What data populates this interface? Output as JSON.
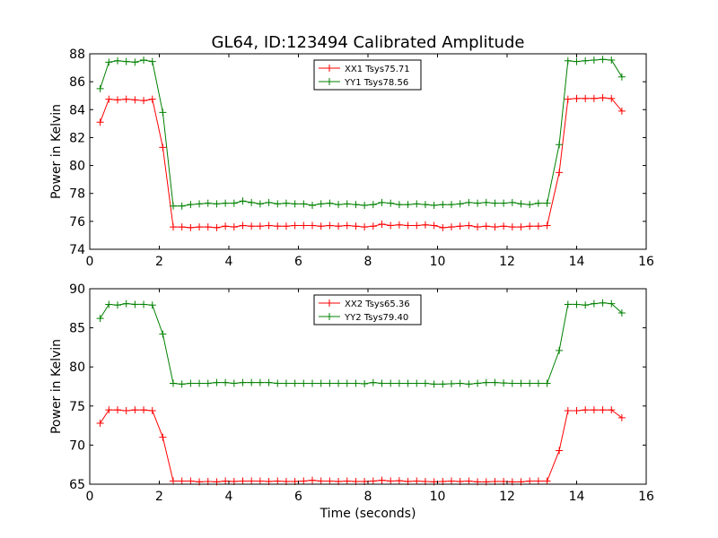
{
  "title": "GL64, ID:123494 Calibrated Amplitude",
  "chart_data": [
    {
      "type": "line",
      "ylabel": "Power in Kelvin",
      "xlabel": "",
      "xlim": [
        0,
        16
      ],
      "ylim": [
        74,
        88
      ],
      "xticks": [
        0,
        2,
        4,
        6,
        8,
        10,
        12,
        14,
        16
      ],
      "yticks": [
        74,
        76,
        78,
        80,
        82,
        84,
        86,
        88
      ],
      "grid": false,
      "legend": "upper-center",
      "x": [
        0.3,
        0.55,
        0.8,
        1.05,
        1.3,
        1.55,
        1.8,
        2.1,
        2.4,
        2.65,
        2.9,
        3.15,
        3.4,
        3.65,
        3.9,
        4.15,
        4.4,
        4.65,
        4.9,
        5.15,
        5.4,
        5.65,
        5.9,
        6.15,
        6.4,
        6.65,
        6.9,
        7.15,
        7.4,
        7.65,
        7.9,
        8.15,
        8.4,
        8.65,
        8.9,
        9.15,
        9.4,
        9.65,
        9.9,
        10.15,
        10.4,
        10.65,
        10.9,
        11.15,
        11.4,
        11.65,
        11.9,
        12.15,
        12.4,
        12.65,
        12.9,
        13.15,
        13.5,
        13.75,
        14.0,
        14.25,
        14.5,
        14.75,
        15.0,
        15.3
      ],
      "series": [
        {
          "name": "XX1 Tsys75.71",
          "color": "#ff0000",
          "values": [
            83.1,
            84.75,
            84.7,
            84.75,
            84.7,
            84.65,
            84.75,
            81.3,
            75.6,
            75.6,
            75.55,
            75.6,
            75.6,
            75.55,
            75.65,
            75.6,
            75.7,
            75.65,
            75.65,
            75.7,
            75.65,
            75.65,
            75.7,
            75.7,
            75.7,
            75.65,
            75.7,
            75.65,
            75.7,
            75.65,
            75.6,
            75.65,
            75.8,
            75.7,
            75.75,
            75.7,
            75.7,
            75.75,
            75.7,
            75.55,
            75.6,
            75.65,
            75.7,
            75.6,
            75.65,
            75.6,
            75.65,
            75.6,
            75.6,
            75.65,
            75.65,
            75.7,
            79.5,
            84.75,
            84.8,
            84.8,
            84.8,
            84.85,
            84.8,
            83.9
          ]
        },
        {
          "name": "YY1 Tsys78.56",
          "color": "#008000",
          "values": [
            85.5,
            87.4,
            87.5,
            87.45,
            87.4,
            87.55,
            87.45,
            83.8,
            77.1,
            77.1,
            77.2,
            77.25,
            77.3,
            77.25,
            77.3,
            77.3,
            77.45,
            77.35,
            77.25,
            77.35,
            77.25,
            77.3,
            77.25,
            77.25,
            77.15,
            77.25,
            77.3,
            77.2,
            77.25,
            77.2,
            77.15,
            77.2,
            77.35,
            77.3,
            77.2,
            77.2,
            77.25,
            77.2,
            77.15,
            77.2,
            77.2,
            77.25,
            77.35,
            77.3,
            77.35,
            77.3,
            77.3,
            77.35,
            77.25,
            77.2,
            77.3,
            77.3,
            81.5,
            87.5,
            87.45,
            87.5,
            87.55,
            87.6,
            87.55,
            86.35
          ]
        }
      ]
    },
    {
      "type": "line",
      "ylabel": "Power in Kelvin",
      "xlabel": "Time (seconds)",
      "xlim": [
        0,
        16
      ],
      "ylim": [
        65,
        90
      ],
      "xticks": [
        0,
        2,
        4,
        6,
        8,
        10,
        12,
        14,
        16
      ],
      "yticks": [
        65,
        70,
        75,
        80,
        85,
        90
      ],
      "grid": false,
      "legend": "upper-center",
      "x": [
        0.3,
        0.55,
        0.8,
        1.05,
        1.3,
        1.55,
        1.8,
        2.1,
        2.4,
        2.65,
        2.9,
        3.15,
        3.4,
        3.65,
        3.9,
        4.15,
        4.4,
        4.65,
        4.9,
        5.15,
        5.4,
        5.65,
        5.9,
        6.15,
        6.4,
        6.65,
        6.9,
        7.15,
        7.4,
        7.65,
        7.9,
        8.15,
        8.4,
        8.65,
        8.9,
        9.15,
        9.4,
        9.65,
        9.9,
        10.15,
        10.4,
        10.65,
        10.9,
        11.15,
        11.4,
        11.65,
        11.9,
        12.15,
        12.4,
        12.65,
        12.9,
        13.15,
        13.5,
        13.75,
        14.0,
        14.25,
        14.5,
        14.75,
        15.0,
        15.3
      ],
      "series": [
        {
          "name": "XX2 Tsys65.36",
          "color": "#ff0000",
          "values": [
            72.8,
            74.5,
            74.5,
            74.4,
            74.5,
            74.5,
            74.4,
            71.0,
            65.4,
            65.4,
            65.4,
            65.3,
            65.35,
            65.3,
            65.4,
            65.35,
            65.4,
            65.4,
            65.4,
            65.35,
            65.4,
            65.35,
            65.35,
            65.4,
            65.5,
            65.4,
            65.4,
            65.35,
            65.4,
            65.35,
            65.35,
            65.4,
            65.5,
            65.4,
            65.45,
            65.35,
            65.4,
            65.35,
            65.3,
            65.35,
            65.4,
            65.35,
            65.4,
            65.3,
            65.3,
            65.35,
            65.35,
            65.3,
            65.3,
            65.4,
            65.4,
            65.4,
            69.3,
            74.4,
            74.4,
            74.5,
            74.5,
            74.5,
            74.5,
            73.5
          ]
        },
        {
          "name": "YY2 Tsys79.40",
          "color": "#008000",
          "values": [
            86.2,
            88.0,
            87.9,
            88.1,
            88.0,
            88.0,
            87.9,
            84.2,
            77.9,
            77.8,
            77.9,
            77.9,
            77.9,
            78.0,
            78.0,
            77.9,
            78.0,
            78.0,
            78.0,
            78.0,
            77.9,
            77.9,
            77.9,
            77.9,
            77.9,
            77.9,
            77.9,
            77.9,
            77.9,
            77.9,
            77.85,
            78.0,
            77.9,
            77.9,
            77.9,
            77.9,
            77.9,
            77.9,
            77.8,
            77.8,
            77.85,
            77.9,
            77.8,
            77.9,
            78.0,
            78.0,
            77.95,
            77.9,
            77.9,
            77.9,
            77.9,
            77.9,
            82.1,
            88.0,
            88.0,
            87.9,
            88.1,
            88.2,
            88.1,
            86.9
          ]
        }
      ]
    }
  ]
}
